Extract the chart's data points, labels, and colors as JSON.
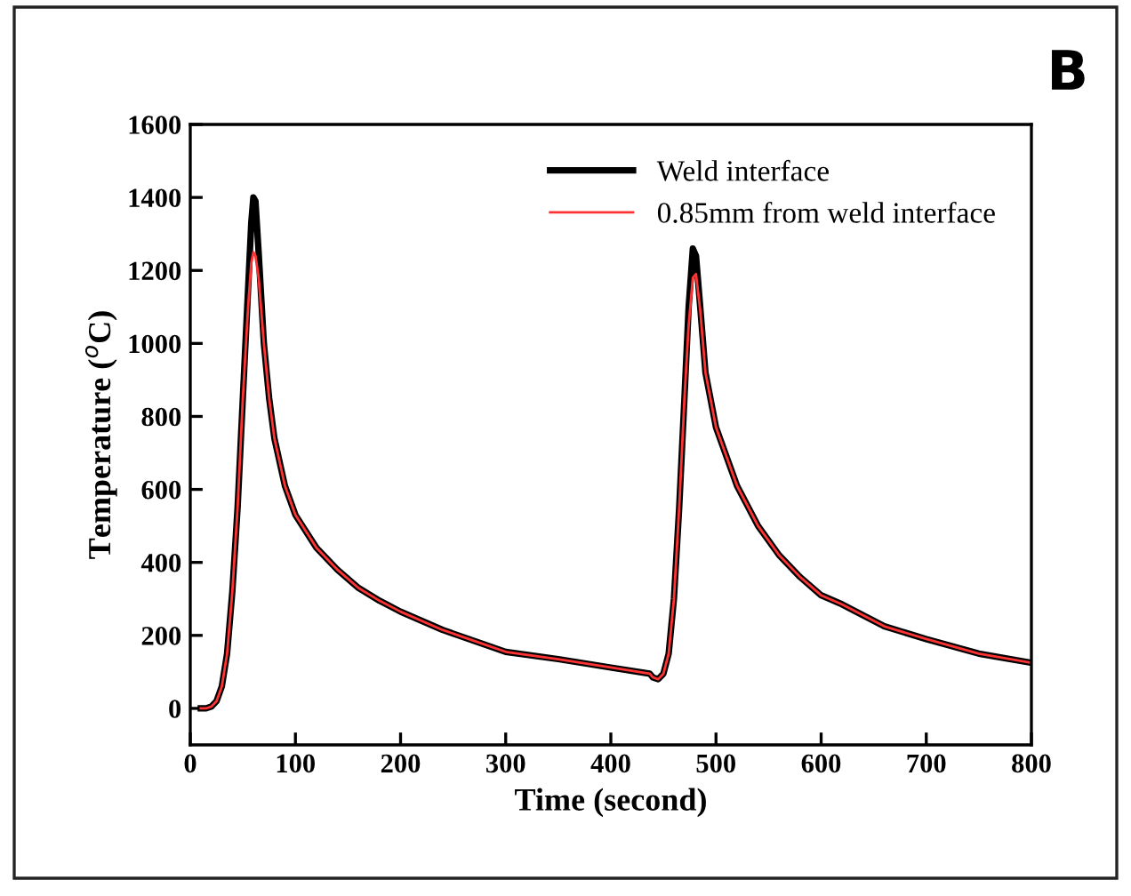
{
  "chart_data": {
    "type": "line",
    "xlabel": "Time (second)",
    "ylabel": "Temperature ($^{o}$C)",
    "annotations": [
      "B"
    ],
    "xlim": [
      0,
      800
    ],
    "xticks": [
      0,
      100,
      200,
      300,
      400,
      500,
      600,
      700,
      800
    ],
    "ylim": [
      -100,
      1600
    ],
    "yticks": [
      0,
      200,
      400,
      600,
      800,
      1000,
      1200,
      1400,
      1600
    ],
    "grid": false,
    "legend": "top right",
    "marker": "none",
    "line_style": "solid",
    "series": [
      {
        "name": "Weld interface",
        "color": "#000000",
        "x": [
          10,
          15,
          20,
          25,
          30,
          35,
          40,
          45,
          50,
          55,
          58,
          60,
          62,
          65,
          70,
          75,
          80,
          90,
          100,
          120,
          140,
          160,
          180,
          200,
          240,
          280,
          300,
          350,
          400,
          437,
          440,
          445,
          450,
          455,
          460,
          465,
          470,
          474,
          478,
          481,
          485,
          490,
          500,
          520,
          540,
          560,
          580,
          600,
          620,
          660,
          700,
          750,
          800
        ],
        "values": [
          0,
          0,
          5,
          20,
          60,
          150,
          320,
          550,
          850,
          1150,
          1330,
          1400,
          1390,
          1250,
          1000,
          850,
          740,
          610,
          530,
          440,
          380,
          330,
          295,
          265,
          215,
          175,
          155,
          135,
          112,
          95,
          85,
          80,
          95,
          150,
          300,
          550,
          850,
          1100,
          1260,
          1240,
          1100,
          920,
          770,
          610,
          500,
          420,
          360,
          310,
          285,
          225,
          190,
          150,
          125
        ]
      },
      {
        "name": "0.85mm from weld interface",
        "color": "#ff3333",
        "x": [
          10,
          15,
          20,
          25,
          30,
          35,
          40,
          45,
          50,
          55,
          58,
          60,
          62,
          65,
          70,
          75,
          80,
          90,
          100,
          120,
          140,
          160,
          180,
          200,
          240,
          280,
          300,
          350,
          400,
          437,
          440,
          445,
          450,
          455,
          460,
          465,
          470,
          474,
          478,
          481,
          485,
          490,
          500,
          520,
          540,
          560,
          580,
          600,
          620,
          660,
          700,
          750,
          800
        ],
        "values": [
          0,
          0,
          5,
          20,
          60,
          150,
          320,
          550,
          850,
          1100,
          1220,
          1250,
          1240,
          1180,
          1000,
          850,
          740,
          610,
          530,
          440,
          380,
          330,
          295,
          265,
          215,
          175,
          155,
          135,
          112,
          95,
          85,
          80,
          95,
          150,
          300,
          550,
          850,
          1050,
          1180,
          1190,
          1090,
          920,
          770,
          610,
          500,
          420,
          360,
          310,
          285,
          225,
          190,
          150,
          125
        ]
      }
    ]
  }
}
